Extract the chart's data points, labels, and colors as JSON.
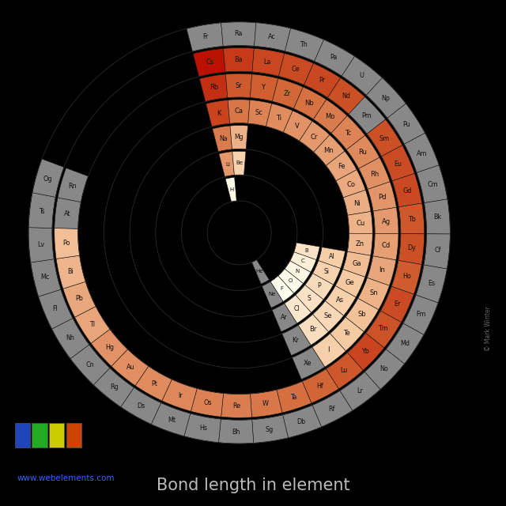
{
  "title": "Bond length in element",
  "background_color": "#000000",
  "text_color": "#cccccc",
  "watermark": "© Mark Winter",
  "website": "www.webelements.com",
  "colormap_colors": [
    "#fffff0",
    "#f5c8a0",
    "#d06030",
    "#bb1100"
  ],
  "na_color": "#888888",
  "vmin": 42,
  "vmax": 298,
  "elements": [
    {
      "symbol": "H",
      "period": 1,
      "slot": 0,
      "value": 53
    },
    {
      "symbol": "He",
      "period": 1,
      "slot": 17,
      "value": null
    },
    {
      "symbol": "Li",
      "period": 2,
      "slot": 0,
      "value": 167
    },
    {
      "symbol": "Be",
      "period": 2,
      "slot": 1,
      "value": 112
    },
    {
      "symbol": "B",
      "period": 2,
      "slot": 12,
      "value": 87
    },
    {
      "symbol": "C",
      "period": 2,
      "slot": 13,
      "value": 67
    },
    {
      "symbol": "N",
      "period": 2,
      "slot": 14,
      "value": 56
    },
    {
      "symbol": "O",
      "period": 2,
      "slot": 15,
      "value": 48
    },
    {
      "symbol": "F",
      "period": 2,
      "slot": 16,
      "value": 42
    },
    {
      "symbol": "Ne",
      "period": 2,
      "slot": 17,
      "value": null
    },
    {
      "symbol": "Na",
      "period": 3,
      "slot": 0,
      "value": 190
    },
    {
      "symbol": "Mg",
      "period": 3,
      "slot": 1,
      "value": 145
    },
    {
      "symbol": "Al",
      "period": 3,
      "slot": 12,
      "value": 118
    },
    {
      "symbol": "Si",
      "period": 3,
      "slot": 13,
      "value": 111
    },
    {
      "symbol": "P",
      "period": 3,
      "slot": 14,
      "value": 98
    },
    {
      "symbol": "S",
      "period": 3,
      "slot": 15,
      "value": 88
    },
    {
      "symbol": "Cl",
      "period": 3,
      "slot": 16,
      "value": 79
    },
    {
      "symbol": "Ar",
      "period": 3,
      "slot": 17,
      "value": null
    },
    {
      "symbol": "K",
      "period": 4,
      "slot": 0,
      "value": 243
    },
    {
      "symbol": "Ca",
      "period": 4,
      "slot": 1,
      "value": 194
    },
    {
      "symbol": "Sc",
      "period": 4,
      "slot": 2,
      "value": 184
    },
    {
      "symbol": "Ti",
      "period": 4,
      "slot": 3,
      "value": 176
    },
    {
      "symbol": "V",
      "period": 4,
      "slot": 4,
      "value": 171
    },
    {
      "symbol": "Cr",
      "period": 4,
      "slot": 5,
      "value": 166
    },
    {
      "symbol": "Mn",
      "period": 4,
      "slot": 6,
      "value": 161
    },
    {
      "symbol": "Fe",
      "period": 4,
      "slot": 7,
      "value": 156
    },
    {
      "symbol": "Co",
      "period": 4,
      "slot": 8,
      "value": 152
    },
    {
      "symbol": "Ni",
      "period": 4,
      "slot": 9,
      "value": 149
    },
    {
      "symbol": "Cu",
      "period": 4,
      "slot": 10,
      "value": 145
    },
    {
      "symbol": "Zn",
      "period": 4,
      "slot": 11,
      "value": 142
    },
    {
      "symbol": "Ga",
      "period": 4,
      "slot": 12,
      "value": 136
    },
    {
      "symbol": "Ge",
      "period": 4,
      "slot": 13,
      "value": 125
    },
    {
      "symbol": "As",
      "period": 4,
      "slot": 14,
      "value": 114
    },
    {
      "symbol": "Se",
      "period": 4,
      "slot": 15,
      "value": 103
    },
    {
      "symbol": "Br",
      "period": 4,
      "slot": 16,
      "value": 94
    },
    {
      "symbol": "Kr",
      "period": 4,
      "slot": 17,
      "value": null
    },
    {
      "symbol": "Rb",
      "period": 5,
      "slot": 0,
      "value": 265
    },
    {
      "symbol": "Sr",
      "period": 5,
      "slot": 1,
      "value": 219
    },
    {
      "symbol": "Y",
      "period": 5,
      "slot": 2,
      "value": 212
    },
    {
      "symbol": "Zr",
      "period": 5,
      "slot": 3,
      "value": 206
    },
    {
      "symbol": "Nb",
      "period": 5,
      "slot": 4,
      "value": 198
    },
    {
      "symbol": "Mo",
      "period": 5,
      "slot": 5,
      "value": 190
    },
    {
      "symbol": "Tc",
      "period": 5,
      "slot": 6,
      "value": 183
    },
    {
      "symbol": "Ru",
      "period": 5,
      "slot": 7,
      "value": 178
    },
    {
      "symbol": "Rh",
      "period": 5,
      "slot": 8,
      "value": 173
    },
    {
      "symbol": "Pd",
      "period": 5,
      "slot": 9,
      "value": 169
    },
    {
      "symbol": "Ag",
      "period": 5,
      "slot": 10,
      "value": 165
    },
    {
      "symbol": "Cd",
      "period": 5,
      "slot": 11,
      "value": 161
    },
    {
      "symbol": "In",
      "period": 5,
      "slot": 12,
      "value": 156
    },
    {
      "symbol": "Sn",
      "period": 5,
      "slot": 13,
      "value": 145
    },
    {
      "symbol": "Sb",
      "period": 5,
      "slot": 14,
      "value": 133
    },
    {
      "symbol": "Te",
      "period": 5,
      "slot": 15,
      "value": 123
    },
    {
      "symbol": "I",
      "period": 5,
      "slot": 16,
      "value": 115
    },
    {
      "symbol": "Xe",
      "period": 5,
      "slot": 17,
      "value": null
    },
    {
      "symbol": "Cs",
      "period": 6,
      "slot": 0,
      "value": 298
    },
    {
      "symbol": "Ba",
      "period": 6,
      "slot": 1,
      "value": 253
    },
    {
      "symbol": "La",
      "period": 6,
      "slot": 2,
      "value": 240
    },
    {
      "symbol": "Ce",
      "period": 6,
      "slot": 3,
      "value": 235
    },
    {
      "symbol": "Pr",
      "period": 6,
      "slot": 4,
      "value": 239
    },
    {
      "symbol": "Nd",
      "period": 6,
      "slot": 5,
      "value": 229
    },
    {
      "symbol": "Pm",
      "period": 6,
      "slot": 6,
      "value": null
    },
    {
      "symbol": "Sm",
      "period": 6,
      "slot": 7,
      "value": 229
    },
    {
      "symbol": "Eu",
      "period": 6,
      "slot": 8,
      "value": 233
    },
    {
      "symbol": "Gd",
      "period": 6,
      "slot": 9,
      "value": 237
    },
    {
      "symbol": "Tb",
      "period": 6,
      "slot": 10,
      "value": 221
    },
    {
      "symbol": "Dy",
      "period": 6,
      "slot": 11,
      "value": 229
    },
    {
      "symbol": "Ho",
      "period": 6,
      "slot": 12,
      "value": 216
    },
    {
      "symbol": "Er",
      "period": 6,
      "slot": 13,
      "value": 235
    },
    {
      "symbol": "Tm",
      "period": 6,
      "slot": 14,
      "value": 227
    },
    {
      "symbol": "Yb",
      "period": 6,
      "slot": 15,
      "value": 242
    },
    {
      "symbol": "Lu",
      "period": 6,
      "slot": 16,
      "value": 221
    },
    {
      "symbol": "Hf",
      "period": 6,
      "slot": 17,
      "value": 208
    },
    {
      "symbol": "Ta",
      "period": 6,
      "slot": 18,
      "value": 200
    },
    {
      "symbol": "W",
      "period": 6,
      "slot": 19,
      "value": 193
    },
    {
      "symbol": "Re",
      "period": 6,
      "slot": 20,
      "value": 188
    },
    {
      "symbol": "Os",
      "period": 6,
      "slot": 21,
      "value": 185
    },
    {
      "symbol": "Ir",
      "period": 6,
      "slot": 22,
      "value": 180
    },
    {
      "symbol": "Pt",
      "period": 6,
      "slot": 23,
      "value": 177
    },
    {
      "symbol": "Au",
      "period": 6,
      "slot": 24,
      "value": 174
    },
    {
      "symbol": "Hg",
      "period": 6,
      "slot": 25,
      "value": 171
    },
    {
      "symbol": "Tl",
      "period": 6,
      "slot": 26,
      "value": 156
    },
    {
      "symbol": "Pb",
      "period": 6,
      "slot": 27,
      "value": 154
    },
    {
      "symbol": "Bi",
      "period": 6,
      "slot": 28,
      "value": 143
    },
    {
      "symbol": "Po",
      "period": 6,
      "slot": 29,
      "value": 135
    },
    {
      "symbol": "At",
      "period": 6,
      "slot": 30,
      "value": null
    },
    {
      "symbol": "Rn",
      "period": 6,
      "slot": 31,
      "value": null
    },
    {
      "symbol": "Fr",
      "period": 7,
      "slot": 0,
      "value": null
    },
    {
      "symbol": "Ra",
      "period": 7,
      "slot": 1,
      "value": null
    },
    {
      "symbol": "Ac",
      "period": 7,
      "slot": 2,
      "value": null
    },
    {
      "symbol": "Th",
      "period": 7,
      "slot": 3,
      "value": null
    },
    {
      "symbol": "Pa",
      "period": 7,
      "slot": 4,
      "value": null
    },
    {
      "symbol": "U",
      "period": 7,
      "slot": 5,
      "value": null
    },
    {
      "symbol": "Np",
      "period": 7,
      "slot": 6,
      "value": null
    },
    {
      "symbol": "Pu",
      "period": 7,
      "slot": 7,
      "value": null
    },
    {
      "symbol": "Am",
      "period": 7,
      "slot": 8,
      "value": null
    },
    {
      "symbol": "Cm",
      "period": 7,
      "slot": 9,
      "value": null
    },
    {
      "symbol": "Bk",
      "period": 7,
      "slot": 10,
      "value": null
    },
    {
      "symbol": "Cf",
      "period": 7,
      "slot": 11,
      "value": null
    },
    {
      "symbol": "Es",
      "period": 7,
      "slot": 12,
      "value": null
    },
    {
      "symbol": "Fm",
      "period": 7,
      "slot": 13,
      "value": null
    },
    {
      "symbol": "Md",
      "period": 7,
      "slot": 14,
      "value": null
    },
    {
      "symbol": "No",
      "period": 7,
      "slot": 15,
      "value": null
    },
    {
      "symbol": "Lr",
      "period": 7,
      "slot": 16,
      "value": null
    },
    {
      "symbol": "Rf",
      "period": 7,
      "slot": 17,
      "value": null
    },
    {
      "symbol": "Db",
      "period": 7,
      "slot": 18,
      "value": null
    },
    {
      "symbol": "Sg",
      "period": 7,
      "slot": 19,
      "value": null
    },
    {
      "symbol": "Bh",
      "period": 7,
      "slot": 20,
      "value": null
    },
    {
      "symbol": "Hs",
      "period": 7,
      "slot": 21,
      "value": null
    },
    {
      "symbol": "Mt",
      "period": 7,
      "slot": 22,
      "value": null
    },
    {
      "symbol": "Ds",
      "period": 7,
      "slot": 23,
      "value": null
    },
    {
      "symbol": "Rg",
      "period": 7,
      "slot": 24,
      "value": null
    },
    {
      "symbol": "Cn",
      "period": 7,
      "slot": 25,
      "value": null
    },
    {
      "symbol": "Nh",
      "period": 7,
      "slot": 26,
      "value": null
    },
    {
      "symbol": "Fl",
      "period": 7,
      "slot": 27,
      "value": null
    },
    {
      "symbol": "Mc",
      "period": 7,
      "slot": 28,
      "value": null
    },
    {
      "symbol": "Lv",
      "period": 7,
      "slot": 29,
      "value": null
    },
    {
      "symbol": "Ts",
      "period": 7,
      "slot": 30,
      "value": null
    },
    {
      "symbol": "Og",
      "period": 7,
      "slot": 31,
      "value": null
    }
  ],
  "legend_items": [
    {
      "color": "#2244bb",
      "label": ""
    },
    {
      "color": "#22aa22",
      "label": ""
    },
    {
      "color": "#cccc00",
      "label": ""
    },
    {
      "color": "#cc4400",
      "label": ""
    }
  ]
}
